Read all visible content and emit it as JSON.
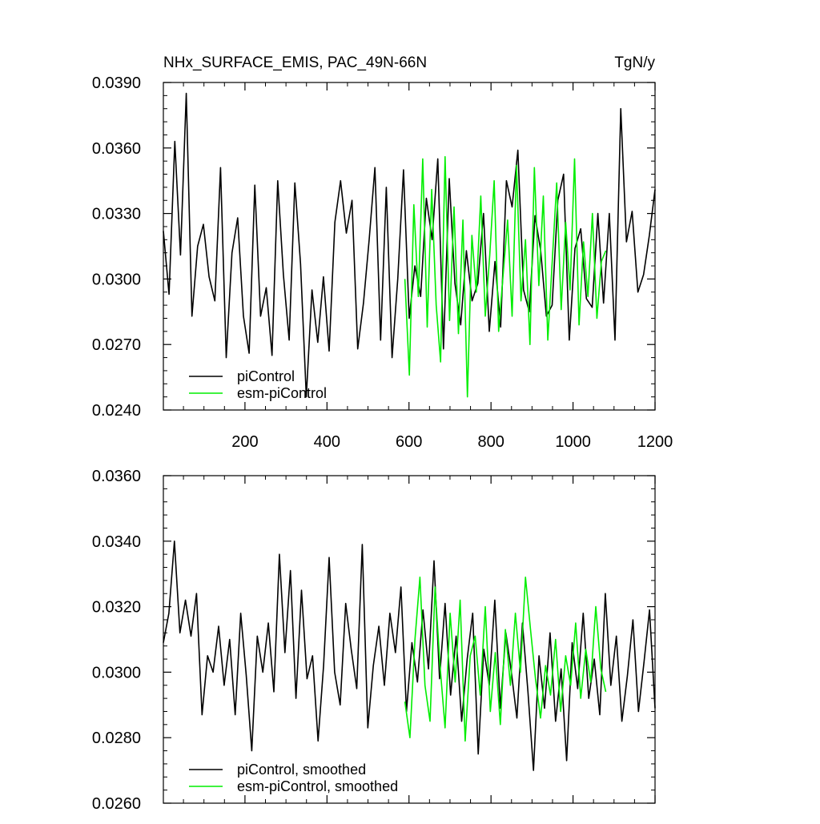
{
  "chart_data": [
    {
      "type": "line",
      "title": "NHx_SURFACE_EMIS, PAC_49N-66N",
      "units": "TgN/y",
      "xlim": [
        1,
        1200
      ],
      "ylim": [
        0.024,
        0.039
      ],
      "yticks": [
        "0.0240",
        "0.0270",
        "0.0300",
        "0.0330",
        "0.0360",
        "0.0390"
      ],
      "xticks": [
        "200",
        "400",
        "600",
        "800",
        "1000",
        "1200"
      ],
      "legend_position": "bottom-left",
      "series": [
        {
          "name": "piControl",
          "color": "#000000",
          "x_range": [
            1,
            1200
          ],
          "mean": 0.0302,
          "values": [
            0.0322,
            0.0293,
            0.0363,
            0.0311,
            0.0385,
            0.0283,
            0.0315,
            0.0325,
            0.0301,
            0.029,
            0.0351,
            0.0264,
            0.0312,
            0.0328,
            0.0283,
            0.0266,
            0.0343,
            0.0283,
            0.0296,
            0.0265,
            0.0345,
            0.0302,
            0.0272,
            0.0344,
            0.0307,
            0.0246,
            0.0295,
            0.0271,
            0.0301,
            0.0267,
            0.0326,
            0.0345,
            0.0321,
            0.0336,
            0.0268,
            0.0289,
            0.0318,
            0.0351,
            0.0272,
            0.0342,
            0.0264,
            0.03,
            0.035,
            0.0282,
            0.0306,
            0.0292,
            0.0337,
            0.0318,
            0.0355,
            0.0268,
            0.0346,
            0.0298,
            0.0279,
            0.0313,
            0.029,
            0.0298,
            0.033,
            0.0276,
            0.0308,
            0.0278,
            0.0345,
            0.0333,
            0.0359,
            0.0295,
            0.0285,
            0.0329,
            0.0313,
            0.0283,
            0.0288,
            0.0336,
            0.0348,
            0.0272,
            0.0314,
            0.0323,
            0.0291,
            0.0287,
            0.033,
            0.0289,
            0.033,
            0.0272,
            0.0378,
            0.0317,
            0.0331,
            0.0294,
            0.0302,
            0.032,
            0.0341
          ]
        },
        {
          "name": "esm-piControl",
          "color": "#00ee00",
          "x_range": [
            590,
            1080
          ],
          "mean": 0.0301,
          "values": [
            0.03,
            0.0256,
            0.0334,
            0.0292,
            0.0355,
            0.0278,
            0.0341,
            0.0288,
            0.0262,
            0.0356,
            0.0281,
            0.0333,
            0.0275,
            0.0327,
            0.0246,
            0.032,
            0.0294,
            0.0338,
            0.0283,
            0.0311,
            0.0345,
            0.0276,
            0.0302,
            0.0327,
            0.0283,
            0.0352,
            0.029,
            0.0318,
            0.027,
            0.0351,
            0.0297,
            0.0338,
            0.0272,
            0.0308,
            0.0344,
            0.0286,
            0.0326,
            0.0295,
            0.0355,
            0.0279,
            0.0317,
            0.0292,
            0.033,
            0.0282,
            0.0308,
            0.0313
          ]
        }
      ]
    },
    {
      "type": "line",
      "title": "",
      "xlim": [
        1,
        1200
      ],
      "ylim": [
        0.026,
        0.036
      ],
      "yticks": [
        "0.0260",
        "0.0280",
        "0.0300",
        "0.0320",
        "0.0340",
        "0.0360"
      ],
      "legend_position": "bottom-left",
      "series": [
        {
          "name": "piControl, smoothed",
          "color": "#000000",
          "x_range": [
            1,
            1200
          ],
          "values": [
            0.0309,
            0.0318,
            0.034,
            0.0312,
            0.0322,
            0.0311,
            0.0324,
            0.0287,
            0.0305,
            0.03,
            0.0314,
            0.0296,
            0.031,
            0.0287,
            0.0318,
            0.0299,
            0.0276,
            0.0311,
            0.03,
            0.0315,
            0.0294,
            0.0336,
            0.0306,
            0.0331,
            0.0292,
            0.0325,
            0.0298,
            0.0305,
            0.0279,
            0.0302,
            0.0335,
            0.03,
            0.029,
            0.0321,
            0.0307,
            0.0295,
            0.0339,
            0.0283,
            0.0302,
            0.0314,
            0.0296,
            0.0318,
            0.0306,
            0.0326,
            0.0288,
            0.0309,
            0.0297,
            0.0319,
            0.0301,
            0.0334,
            0.0298,
            0.0321,
            0.0293,
            0.0311,
            0.0285,
            0.0304,
            0.0318,
            0.0275,
            0.0307,
            0.0296,
            0.0322,
            0.0289,
            0.0312,
            0.03,
            0.0286,
            0.0315,
            0.0294,
            0.027,
            0.0305,
            0.0289,
            0.0312,
            0.0285,
            0.0301,
            0.0273,
            0.0309,
            0.0295,
            0.0318,
            0.0292,
            0.0304,
            0.0287,
            0.0324,
            0.0296,
            0.0311,
            0.0285,
            0.0299,
            0.0316,
            0.0288,
            0.0303,
            0.0319,
            0.0289
          ]
        },
        {
          "name": "esm-piControl, smoothed",
          "color": "#00ee00",
          "x_range": [
            590,
            1080
          ],
          "values": [
            0.0291,
            0.028,
            0.031,
            0.0329,
            0.0296,
            0.0285,
            0.0326,
            0.0302,
            0.0283,
            0.0318,
            0.0297,
            0.0322,
            0.0279,
            0.0305,
            0.0311,
            0.0293,
            0.032,
            0.0288,
            0.0306,
            0.0284,
            0.0313,
            0.0296,
            0.0318,
            0.03,
            0.0329,
            0.0313,
            0.0298,
            0.0286,
            0.0302,
            0.0293,
            0.031,
            0.0288,
            0.0305,
            0.0296,
            0.0315,
            0.0292,
            0.0307,
            0.0297,
            0.032,
            0.0301,
            0.0294
          ]
        }
      ]
    }
  ]
}
